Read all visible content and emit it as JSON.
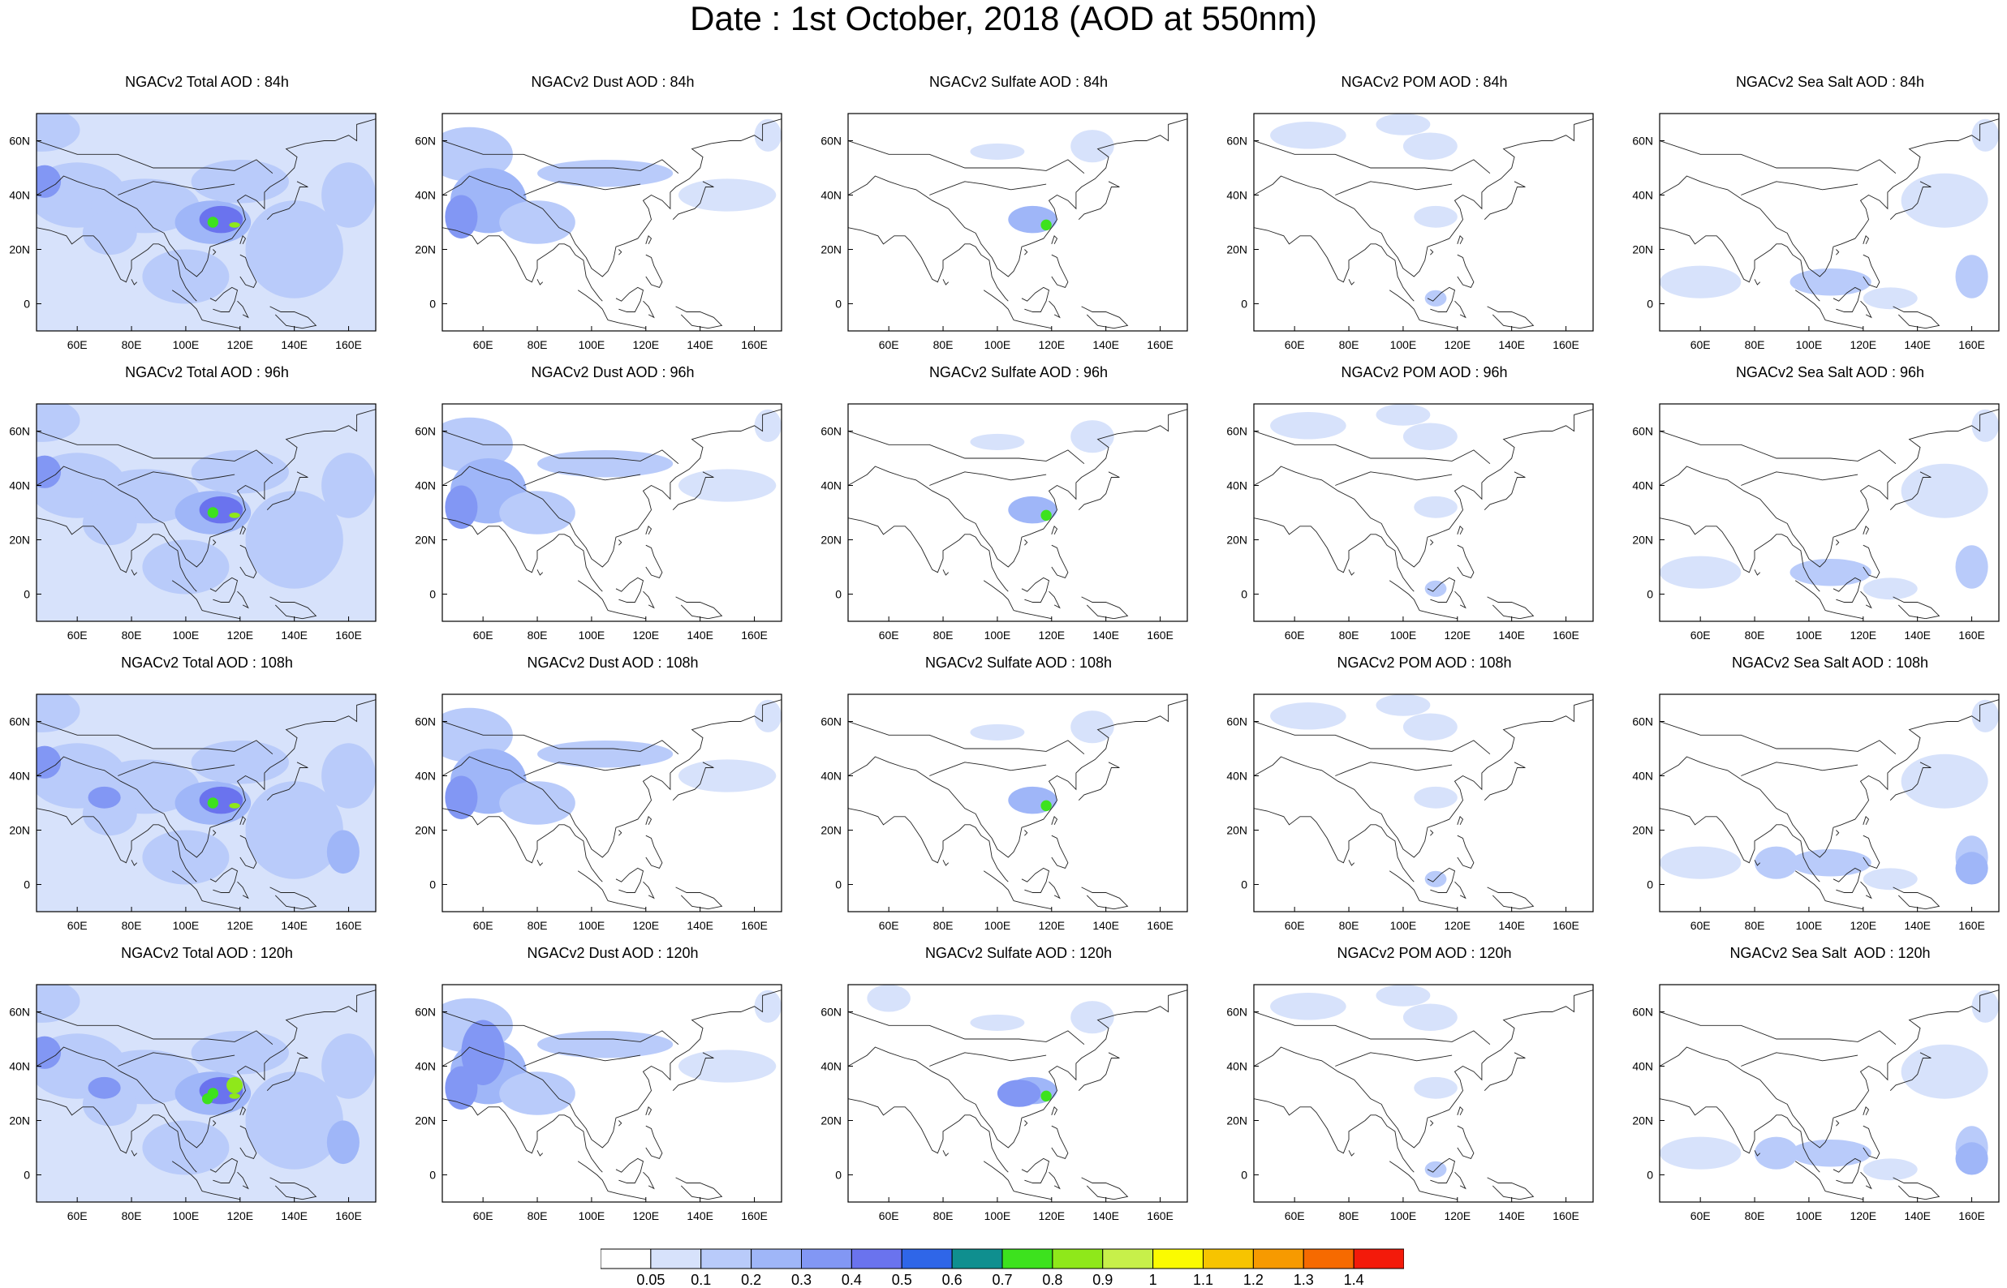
{
  "title": "Date : 1st October, 2018 (AOD at 550nm)",
  "x_ticks": [
    "60E",
    "80E",
    "100E",
    "120E",
    "140E",
    "160E"
  ],
  "y_ticks": [
    "60N",
    "40N",
    "20N",
    "0"
  ],
  "rows": [
    [
      "NGACv2 Total AOD : 84h",
      "NGACv2 Dust AOD : 84h",
      "NGACv2 Sulfate AOD : 84h",
      "NGACv2 POM AOD : 84h",
      "NGACv2 Sea Salt AOD : 84h"
    ],
    [
      "NGACv2 Total AOD : 96h",
      "NGACv2 Dust AOD : 96h",
      "NGACv2 Sulfate AOD : 96h",
      "NGACv2 POM AOD : 96h",
      "NGACv2 Sea Salt AOD : 96h"
    ],
    [
      "NGACv2 Total AOD : 108h",
      "NGACv2 Dust AOD : 108h",
      "NGACv2 Sulfate AOD : 108h",
      "NGACv2 POM AOD : 108h",
      "NGACv2 Sea Salt AOD : 108h"
    ],
    [
      "NGACv2 Total AOD : 120h",
      "NGACv2 Dust AOD : 120h",
      "NGACv2 Sulfate AOD : 120h",
      "NGACv2 POM AOD : 120h",
      "NGACv2 Sea Salt  AOD : 120h"
    ]
  ],
  "colorbar": {
    "labels": [
      "0.05",
      "0.1",
      "0.2",
      "0.3",
      "0.4",
      "0.5",
      "0.6",
      "0.7",
      "0.8",
      "0.9",
      "1",
      "1.1",
      "1.2",
      "1.3",
      "1.4"
    ],
    "colors": [
      "#ffffff",
      "#d7e2fb",
      "#b9cbfa",
      "#9fb6f8",
      "#8297f4",
      "#6a73ee",
      "#2f66e8",
      "#0f8f8f",
      "#3de21e",
      "#8fe81a",
      "#c7f04a",
      "#fbfb00",
      "#f7c400",
      "#f79a00",
      "#f66a00",
      "#f31a0a"
    ]
  }
}
